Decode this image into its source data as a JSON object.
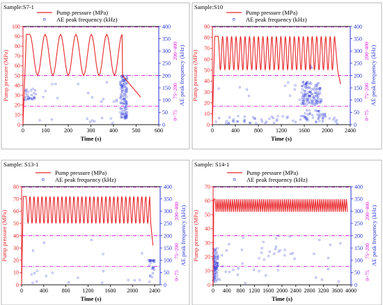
{
  "colors": {
    "pressure": "#e8262a",
    "ae": "#2a36d6",
    "band": "#e020e0",
    "axis": "#000000",
    "box": "#888888"
  },
  "chart_data": [
    {
      "type": "line",
      "sample_label": "Sample:S7-1",
      "xlabel": "Time (s)",
      "ylabel_left": "Pump pressure (MPa)",
      "ylabel_right": "AE peak frequency (kHz)",
      "xticks": [
        "0",
        "100",
        "200",
        "300",
        "400",
        "500",
        "600"
      ],
      "yticks_left": [
        "0",
        "10",
        "20",
        "30",
        "40",
        "50",
        "60",
        "70",
        "80",
        "90",
        "100"
      ],
      "yticks_right": [
        "0",
        "50",
        "100",
        "150",
        "200",
        "250",
        "300",
        "350",
        "400"
      ],
      "xlim": [
        0,
        600
      ],
      "ylim_left": [
        0,
        100
      ],
      "ylim_right": [
        0,
        400
      ],
      "bands": [
        {
          "label": "200~400",
          "from": 200,
          "to": 400
        },
        {
          "label": "75~200",
          "from": 75,
          "to": 200
        },
        {
          "label": "0~75",
          "from": 0,
          "to": 75
        }
      ],
      "legend": [
        "Pump pressure (MPa)",
        "AE peak frequency (kHz)"
      ],
      "pressure": {
        "rise_end": 15,
        "cycle_start": 30,
        "cycle_end": 440,
        "period": 68,
        "min": 50,
        "max": 92,
        "drop_to": 28,
        "end": 520,
        "sharp_cycles": false
      },
      "ae_clusters": [
        {
          "x_from": 5,
          "x_to": 60,
          "y_from": 100,
          "y_to": 150,
          "n": 30
        },
        {
          "x_from": 60,
          "x_to": 430,
          "y_from": 90,
          "y_to": 180,
          "n": 14
        },
        {
          "x_from": 430,
          "x_to": 460,
          "y_from": 20,
          "y_to": 200,
          "n": 120
        },
        {
          "x_from": 20,
          "x_to": 460,
          "y_from": 5,
          "y_to": 30,
          "n": 10
        }
      ]
    },
    {
      "type": "line",
      "sample_label": "Sample:S10",
      "xlabel": "Time (s)",
      "ylabel_left": "Pump pressure (MPa)",
      "ylabel_right": "AE peak frequency (kHz)",
      "xticks": [
        "0",
        "400",
        "800",
        "1200",
        "1600",
        "2000",
        "2400"
      ],
      "yticks_left": [
        "0",
        "10",
        "20",
        "30",
        "40",
        "50",
        "60",
        "70",
        "80",
        "90"
      ],
      "yticks_right": [
        "0",
        "50",
        "100",
        "150",
        "200",
        "250",
        "300",
        "350",
        "400"
      ],
      "xlim": [
        0,
        2400
      ],
      "ylim_left": [
        0,
        90
      ],
      "ylim_right": [
        0,
        400
      ],
      "bands": [
        {
          "label": "200~400",
          "from": 200,
          "to": 400
        },
        {
          "label": "75~200",
          "from": 75,
          "to": 200
        },
        {
          "label": "0~75",
          "from": 0,
          "to": 75
        }
      ],
      "legend": [
        "Pump pressure (MPa)",
        "AE peak frequency (kHz)"
      ],
      "pressure": {
        "rise_end": 40,
        "cycle_start": 100,
        "cycle_end": 2180,
        "period": 78,
        "min": 50,
        "max": 81,
        "drop_to": 37,
        "end": 2230,
        "sharp_cycles": false
      },
      "ae_clusters": [
        {
          "x_from": 1550,
          "x_to": 1700,
          "y_from": 80,
          "y_to": 175,
          "n": 60
        },
        {
          "x_from": 1700,
          "x_to": 1900,
          "y_from": 80,
          "y_to": 170,
          "n": 60
        },
        {
          "x_from": 1600,
          "x_to": 2000,
          "y_from": 20,
          "y_to": 60,
          "n": 30
        },
        {
          "x_from": 50,
          "x_to": 2200,
          "y_from": 5,
          "y_to": 35,
          "n": 60
        },
        {
          "x_from": 100,
          "x_to": 2000,
          "y_from": 100,
          "y_to": 180,
          "n": 12
        },
        {
          "x_from": 1650,
          "x_to": 1750,
          "y_from": 230,
          "y_to": 240,
          "n": 4
        }
      ]
    },
    {
      "type": "line",
      "sample_label": "Sample:  S13-1",
      "xlabel": "Time (s)",
      "ylabel_left": "Pump pressure (MPa)",
      "ylabel_right": "AE peak frequency (kHz)",
      "xticks": [
        "0",
        "400",
        "800",
        "1200",
        "1600",
        "2000",
        "2400"
      ],
      "yticks_left": [
        "0",
        "10",
        "20",
        "30",
        "40",
        "50",
        "60",
        "70",
        "80"
      ],
      "yticks_right": [
        "0",
        "50",
        "100",
        "150",
        "200",
        "250",
        "300",
        "350",
        "400"
      ],
      "xlim": [
        0,
        2500
      ],
      "ylim_left": [
        0,
        80
      ],
      "ylim_right": [
        0,
        400
      ],
      "bands": [
        {
          "label": "200~400",
          "from": 200,
          "to": 400
        },
        {
          "label": "75~200",
          "from": 75,
          "to": 200
        },
        {
          "label": "0~75",
          "from": 0,
          "to": 75
        }
      ],
      "legend": [
        "Pump pressure (MPa)",
        "AE peak frequency (kHz)"
      ],
      "pressure": {
        "rise_end": 30,
        "cycle_start": 80,
        "cycle_end": 2330,
        "period": 72,
        "min": 50,
        "max": 72,
        "drop_to": 32,
        "end": 2370,
        "sharp_cycles": false
      },
      "ae_clusters": [
        {
          "x_from": 2280,
          "x_to": 2400,
          "y_from": 90,
          "y_to": 105,
          "n": 16
        },
        {
          "x_from": 2300,
          "x_to": 2400,
          "y_from": 10,
          "y_to": 80,
          "n": 12
        },
        {
          "x_from": 100,
          "x_to": 2300,
          "y_from": 5,
          "y_to": 60,
          "n": 14
        },
        {
          "x_from": 200,
          "x_to": 2200,
          "y_from": 120,
          "y_to": 190,
          "n": 5
        }
      ]
    },
    {
      "type": "line",
      "sample_label": "Sample:   S14-1",
      "xlabel": "Time (s)",
      "ylabel_left": "Pump pressure (MPa)",
      "ylabel_right": "AE peak frequency (kHz)",
      "xticks": [
        "0",
        "400",
        "800",
        "1200",
        "1600",
        "2000",
        "2400",
        "2800",
        "3200",
        "3600",
        "4000"
      ],
      "yticks_left": [
        "0",
        "10",
        "20",
        "30",
        "40",
        "50",
        "60",
        "70"
      ],
      "yticks_right": [
        "0",
        "50",
        "100",
        "150",
        "200",
        "250",
        "300",
        "350",
        "400"
      ],
      "xlim": [
        0,
        4000
      ],
      "ylim_left": [
        0,
        70
      ],
      "ylim_right": [
        0,
        400
      ],
      "bands": [
        {
          "label": "200~400",
          "from": 200,
          "to": 400
        },
        {
          "label": "75~200",
          "from": 75,
          "to": 200
        },
        {
          "label": "0~75",
          "from": 0,
          "to": 75
        }
      ],
      "legend": [
        "Pump pressure (MPa)",
        "AE peak frequency (kHz)"
      ],
      "pressure": {
        "rise_end": 20,
        "cycle_start": 60,
        "cycle_end": 3900,
        "period": 56,
        "min": 52,
        "max": 61,
        "drop_to": 52,
        "end": 3900,
        "sharp_cycles": true
      },
      "ae_clusters": [
        {
          "x_from": 0,
          "x_to": 150,
          "y_from": 10,
          "y_to": 150,
          "n": 90
        },
        {
          "x_from": 150,
          "x_to": 3800,
          "y_from": 5,
          "y_to": 200,
          "n": 40
        },
        {
          "x_from": 1600,
          "x_to": 2400,
          "y_from": 110,
          "y_to": 150,
          "n": 8
        }
      ]
    }
  ]
}
